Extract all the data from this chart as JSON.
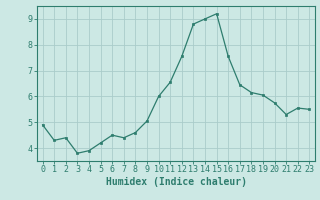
{
  "x": [
    0,
    1,
    2,
    3,
    4,
    5,
    6,
    7,
    8,
    9,
    10,
    11,
    12,
    13,
    14,
    15,
    16,
    17,
    18,
    19,
    20,
    21,
    22,
    23
  ],
  "y": [
    4.9,
    4.3,
    4.4,
    3.8,
    3.9,
    4.2,
    4.5,
    4.4,
    4.6,
    5.05,
    6.0,
    6.55,
    7.55,
    8.8,
    9.0,
    9.2,
    7.55,
    6.45,
    6.15,
    6.05,
    5.75,
    5.3,
    5.55,
    5.5
  ],
  "xlabel": "Humidex (Indice chaleur)",
  "ylim": [
    3.5,
    9.5
  ],
  "xlim": [
    -0.5,
    23.5
  ],
  "yticks": [
    4,
    5,
    6,
    7,
    8,
    9
  ],
  "xticks": [
    0,
    1,
    2,
    3,
    4,
    5,
    6,
    7,
    8,
    9,
    10,
    11,
    12,
    13,
    14,
    15,
    16,
    17,
    18,
    19,
    20,
    21,
    22,
    23
  ],
  "line_color": "#2e7d6e",
  "marker_color": "#2e7d6e",
  "bg_color": "#cce8e4",
  "grid_color": "#aaccca",
  "axis_color": "#2e7d6e",
  "tick_color": "#2e7d6e",
  "label_color": "#2e7d6e",
  "font_size_ticks": 6,
  "font_size_label": 7
}
